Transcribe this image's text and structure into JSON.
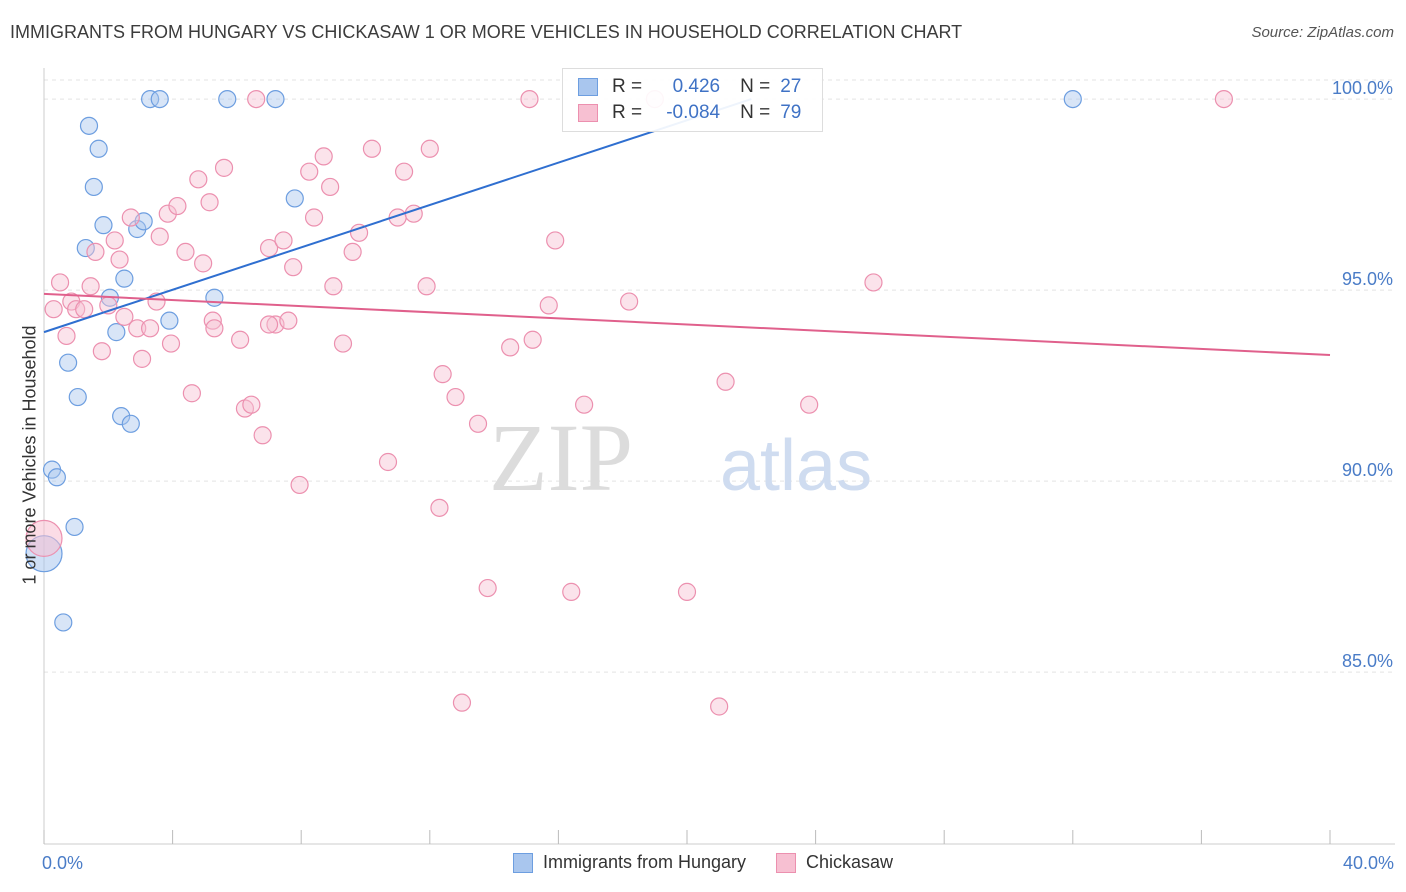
{
  "title": "IMMIGRANTS FROM HUNGARY VS CHICKASAW 1 OR MORE VEHICLES IN HOUSEHOLD CORRELATION CHART",
  "source": "Source: ZipAtlas.com",
  "watermark": {
    "zip": "ZIP",
    "atlas": "atlas"
  },
  "stats": {
    "rows": [
      {
        "r_label": "R =",
        "r_value": "0.426",
        "n_label": "N =",
        "n_value": "27",
        "color": "#a9c6ee",
        "border": "#6d9ee0"
      },
      {
        "r_label": "R =",
        "r_value": "-0.084",
        "n_label": "N =",
        "n_value": "79",
        "color": "#f7c0d2",
        "border": "#ec90af"
      }
    ]
  },
  "legend": {
    "items": [
      {
        "label": "Immigrants from Hungary",
        "color": "#a9c6ee",
        "border": "#6d9ee0"
      },
      {
        "label": "Chickasaw",
        "color": "#f7c0d2",
        "border": "#ec90af"
      }
    ]
  },
  "chart_data": {
    "type": "scatter",
    "title": "IMMIGRANTS FROM HUNGARY VS CHICKASAW 1 OR MORE VEHICLES IN HOUSEHOLD CORRELATION CHART",
    "xlabel": "",
    "ylabel": "1 or more Vehicles in Household",
    "xlim": [
      0,
      40
    ],
    "ylim": [
      80.5,
      101
    ],
    "x_tick_labels": [
      "0.0%",
      "40.0%"
    ],
    "y_ticks": [
      85,
      90,
      95,
      100
    ],
    "y_tick_labels": [
      "85.0%",
      "90.0%",
      "95.0%",
      "100.0%"
    ],
    "grid": true,
    "legend_position": "bottom-center",
    "series": [
      {
        "name": "Immigrants from Hungary",
        "color": "#6d9ee0",
        "fill": "#a9c6ee",
        "trend": {
          "x": [
            0.0,
            22.0
          ],
          "y": [
            93.9,
            100.0
          ]
        },
        "points": [
          [
            0.0,
            88.1
          ],
          [
            0.25,
            90.3
          ],
          [
            0.4,
            90.1
          ],
          [
            0.6,
            86.3
          ],
          [
            0.75,
            93.1
          ],
          [
            0.95,
            88.8
          ],
          [
            1.05,
            92.2
          ],
          [
            1.3,
            96.1
          ],
          [
            1.4,
            99.3
          ],
          [
            1.55,
            97.7
          ],
          [
            1.7,
            98.7
          ],
          [
            1.85,
            96.7
          ],
          [
            2.05,
            94.8
          ],
          [
            2.25,
            93.9
          ],
          [
            2.4,
            91.7
          ],
          [
            2.5,
            95.3
          ],
          [
            2.7,
            91.5
          ],
          [
            2.9,
            96.6
          ],
          [
            3.1,
            96.8
          ],
          [
            3.3,
            100.0
          ],
          [
            3.6,
            100.0
          ],
          [
            3.9,
            94.2
          ],
          [
            5.3,
            94.8
          ],
          [
            5.7,
            100.0
          ],
          [
            7.2,
            100.0
          ],
          [
            7.8,
            97.4
          ],
          [
            32.0,
            100.0
          ]
        ]
      },
      {
        "name": "Chickasaw",
        "color": "#ec90af",
        "fill": "#f7c0d2",
        "trend": {
          "x": [
            0.0,
            40.0
          ],
          "y": [
            94.9,
            93.3
          ]
        },
        "points": [
          [
            0.0,
            88.5
          ],
          [
            0.3,
            94.5
          ],
          [
            0.5,
            95.2
          ],
          [
            0.7,
            93.8
          ],
          [
            0.85,
            94.7
          ],
          [
            1.0,
            94.5
          ],
          [
            1.25,
            94.5
          ],
          [
            1.45,
            95.1
          ],
          [
            1.6,
            96.0
          ],
          [
            1.8,
            93.4
          ],
          [
            2.0,
            94.6
          ],
          [
            2.2,
            96.3
          ],
          [
            2.35,
            95.8
          ],
          [
            2.5,
            94.3
          ],
          [
            2.7,
            96.9
          ],
          [
            2.9,
            94.0
          ],
          [
            3.05,
            93.2
          ],
          [
            3.3,
            94.0
          ],
          [
            3.5,
            94.7
          ],
          [
            3.6,
            96.4
          ],
          [
            3.85,
            97.0
          ],
          [
            3.95,
            93.6
          ],
          [
            4.15,
            97.2
          ],
          [
            4.4,
            96.0
          ],
          [
            4.6,
            92.3
          ],
          [
            4.8,
            97.9
          ],
          [
            4.95,
            95.7
          ],
          [
            5.15,
            97.3
          ],
          [
            5.25,
            94.2
          ],
          [
            5.6,
            98.2
          ],
          [
            6.1,
            93.7
          ],
          [
            6.25,
            91.9
          ],
          [
            6.45,
            92.0
          ],
          [
            6.6,
            100.0
          ],
          [
            6.8,
            91.2
          ],
          [
            7.0,
            96.1
          ],
          [
            7.2,
            94.1
          ],
          [
            7.45,
            96.3
          ],
          [
            7.6,
            94.2
          ],
          [
            7.75,
            95.6
          ],
          [
            7.95,
            89.9
          ],
          [
            8.25,
            98.1
          ],
          [
            8.4,
            96.9
          ],
          [
            8.7,
            98.5
          ],
          [
            8.9,
            97.7
          ],
          [
            9.0,
            95.1
          ],
          [
            9.3,
            93.6
          ],
          [
            9.6,
            96.0
          ],
          [
            9.8,
            96.5
          ],
          [
            10.2,
            98.7
          ],
          [
            10.7,
            90.5
          ],
          [
            11.0,
            96.9
          ],
          [
            11.2,
            98.1
          ],
          [
            11.5,
            97.0
          ],
          [
            11.9,
            95.1
          ],
          [
            12.0,
            98.7
          ],
          [
            12.3,
            89.3
          ],
          [
            12.4,
            92.8
          ],
          [
            12.8,
            92.2
          ],
          [
            13.0,
            84.2
          ],
          [
            13.5,
            91.5
          ],
          [
            13.8,
            87.2
          ],
          [
            14.5,
            93.5
          ],
          [
            15.1,
            100.0
          ],
          [
            15.2,
            93.7
          ],
          [
            15.7,
            94.6
          ],
          [
            15.9,
            96.3
          ],
          [
            16.4,
            87.1
          ],
          [
            16.8,
            92.0
          ],
          [
            18.2,
            94.7
          ],
          [
            19.0,
            100.0
          ],
          [
            20.0,
            87.1
          ],
          [
            21.0,
            84.1
          ],
          [
            21.2,
            92.6
          ],
          [
            23.8,
            92.0
          ],
          [
            25.8,
            95.2
          ],
          [
            36.7,
            100.0
          ],
          [
            7.0,
            94.1
          ],
          [
            5.3,
            94.0
          ]
        ]
      }
    ]
  }
}
